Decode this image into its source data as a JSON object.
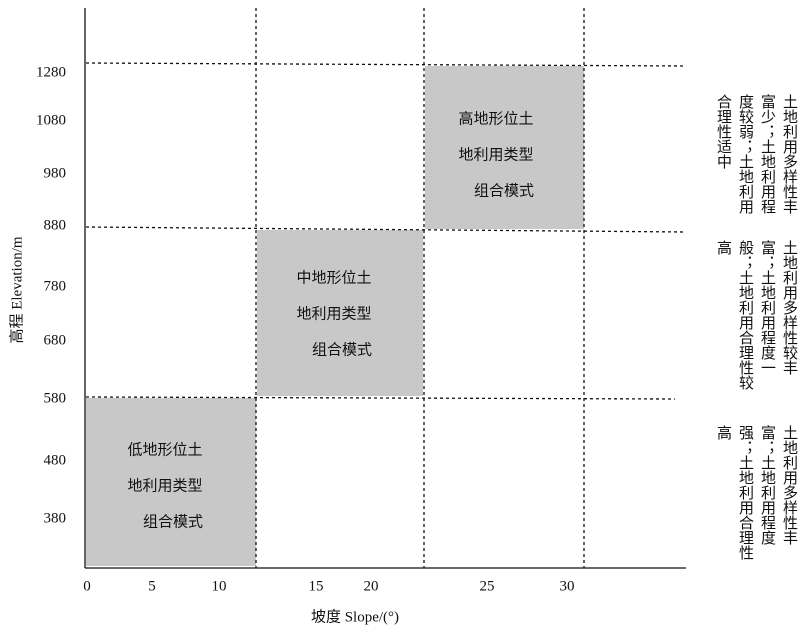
{
  "axes": {
    "y_label": "高程 Elevation/m",
    "x_label": "坡度 Slope/(°)",
    "y_ticks": [
      "1280",
      "1080",
      "980",
      "880",
      "780",
      "680",
      "580",
      "480",
      "380"
    ],
    "x_ticks": [
      "0",
      "5",
      "10",
      "15",
      "20",
      "25",
      "30"
    ]
  },
  "zones": [
    {
      "lines": [
        "高地形位土",
        "地利用类型",
        "组合模式"
      ],
      "note": "土地利用多样性丰富少；土地利用程度较弱；土地利用合理性适中"
    },
    {
      "lines": [
        "中地形位土",
        "地利用类型",
        "组合模式"
      ],
      "note": "土地利用多样性较丰富；土地利用程度一般；土地利用合理性较高"
    },
    {
      "lines": [
        "低地形位土",
        "地利用类型",
        "组合模式"
      ],
      "note": "土地利用多样性丰富；土地利用程度强；土地利用合理性高"
    }
  ]
}
